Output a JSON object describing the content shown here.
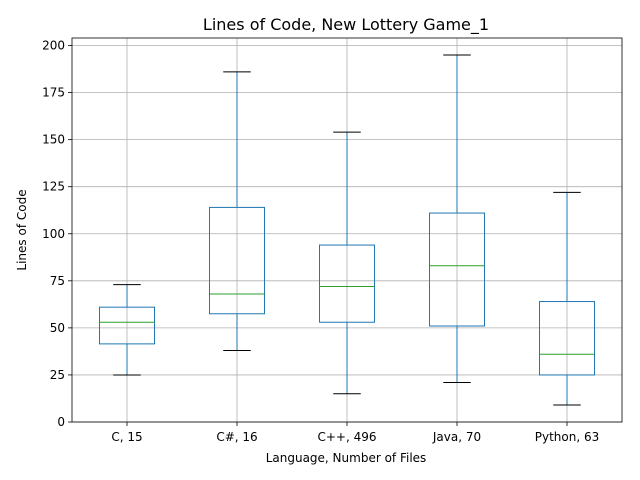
{
  "chart_data": {
    "type": "box",
    "title": "Lines of Code, New Lottery Game_1",
    "xlabel": "Language, Number of Files",
    "ylabel": "Lines of Code",
    "ylim": [
      0,
      204
    ],
    "yticks": [
      0,
      25,
      50,
      75,
      100,
      125,
      150,
      175,
      200
    ],
    "grid": true,
    "categories": [
      "C, 15",
      "C#, 16",
      "C++, 496",
      "Java, 70",
      "Python, 63"
    ],
    "boxes": [
      {
        "label": "C, 15",
        "whisker_low": 25,
        "q1": 41.5,
        "median": 53,
        "q3": 61,
        "whisker_high": 73
      },
      {
        "label": "C#, 16",
        "whisker_low": 38,
        "q1": 57.5,
        "median": 68,
        "q3": 114,
        "whisker_high": 186
      },
      {
        "label": "C++, 496",
        "whisker_low": 15,
        "q1": 53,
        "median": 72,
        "q3": 94,
        "whisker_high": 154
      },
      {
        "label": "Java, 70",
        "whisker_low": 21,
        "q1": 51,
        "median": 83,
        "q3": 111,
        "whisker_high": 195
      },
      {
        "label": "Python, 63",
        "whisker_low": 9,
        "q1": 25,
        "median": 36,
        "q3": 64,
        "whisker_high": 122
      }
    ],
    "colors": {
      "box": "#1f77b4",
      "median": "#2ca02c",
      "cap": "#000000",
      "grid": "#b0b0b0"
    }
  }
}
